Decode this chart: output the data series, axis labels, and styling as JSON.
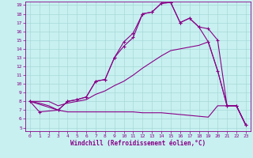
{
  "xlabel": "Windchill (Refroidissement éolien,°C)",
  "bg_color": "#c8f0f0",
  "grid_color": "#a8d8d8",
  "line_color": "#880088",
  "xlim_min": -0.5,
  "xlim_max": 23.5,
  "ylim_min": 4.6,
  "ylim_max": 19.4,
  "xticks": [
    0,
    1,
    2,
    3,
    4,
    5,
    6,
    7,
    8,
    9,
    10,
    11,
    12,
    13,
    14,
    15,
    16,
    17,
    18,
    19,
    20,
    21,
    22,
    23
  ],
  "yticks": [
    5,
    6,
    7,
    8,
    9,
    10,
    11,
    12,
    13,
    14,
    15,
    16,
    17,
    18,
    19
  ],
  "line1_x": [
    0,
    1,
    3,
    4,
    5,
    6,
    7,
    8,
    9,
    10,
    11,
    12,
    13,
    14,
    15,
    16,
    17,
    18,
    19,
    20,
    21,
    22,
    23
  ],
  "line1_y": [
    8,
    6.8,
    7.0,
    8.0,
    8.2,
    8.5,
    10.3,
    10.5,
    13.0,
    14.8,
    15.8,
    18.0,
    18.2,
    19.2,
    19.3,
    17.0,
    17.5,
    16.5,
    16.3,
    15.0,
    7.5,
    7.5,
    5.3
  ],
  "line2_x": [
    0,
    3,
    4,
    5,
    6,
    7,
    8,
    9,
    10,
    11,
    12,
    13,
    14,
    15,
    16,
    17,
    18,
    19,
    20,
    21,
    22,
    23
  ],
  "line2_y": [
    8,
    7.0,
    8.0,
    8.2,
    8.5,
    10.3,
    10.5,
    13.0,
    14.3,
    15.3,
    18.0,
    18.2,
    19.2,
    19.3,
    17.0,
    17.5,
    16.5,
    14.8,
    11.5,
    7.5,
    7.5,
    5.3
  ],
  "line3_x": [
    0,
    1,
    2,
    3,
    4,
    5,
    6,
    7,
    8,
    9,
    10,
    11,
    12,
    13,
    14,
    15,
    16,
    17,
    18,
    19,
    20,
    21,
    22,
    23
  ],
  "line3_y": [
    8,
    8,
    8,
    7.5,
    7.8,
    8.0,
    8.2,
    8.8,
    9.2,
    9.8,
    10.3,
    11.0,
    11.8,
    12.5,
    13.2,
    13.8,
    14.0,
    14.2,
    14.4,
    14.8,
    11.5,
    7.5,
    7.5,
    5.3
  ],
  "line4_x": [
    0,
    1,
    2,
    3,
    4,
    5,
    6,
    7,
    8,
    9,
    10,
    11,
    12,
    13,
    14,
    15,
    16,
    17,
    18,
    19,
    20,
    21,
    22,
    23
  ],
  "line4_y": [
    8,
    7.8,
    7.5,
    7.0,
    6.8,
    6.8,
    6.8,
    6.8,
    6.8,
    6.8,
    6.8,
    6.8,
    6.7,
    6.7,
    6.7,
    6.6,
    6.5,
    6.4,
    6.3,
    6.2,
    7.5,
    7.5,
    7.5,
    5.3
  ]
}
